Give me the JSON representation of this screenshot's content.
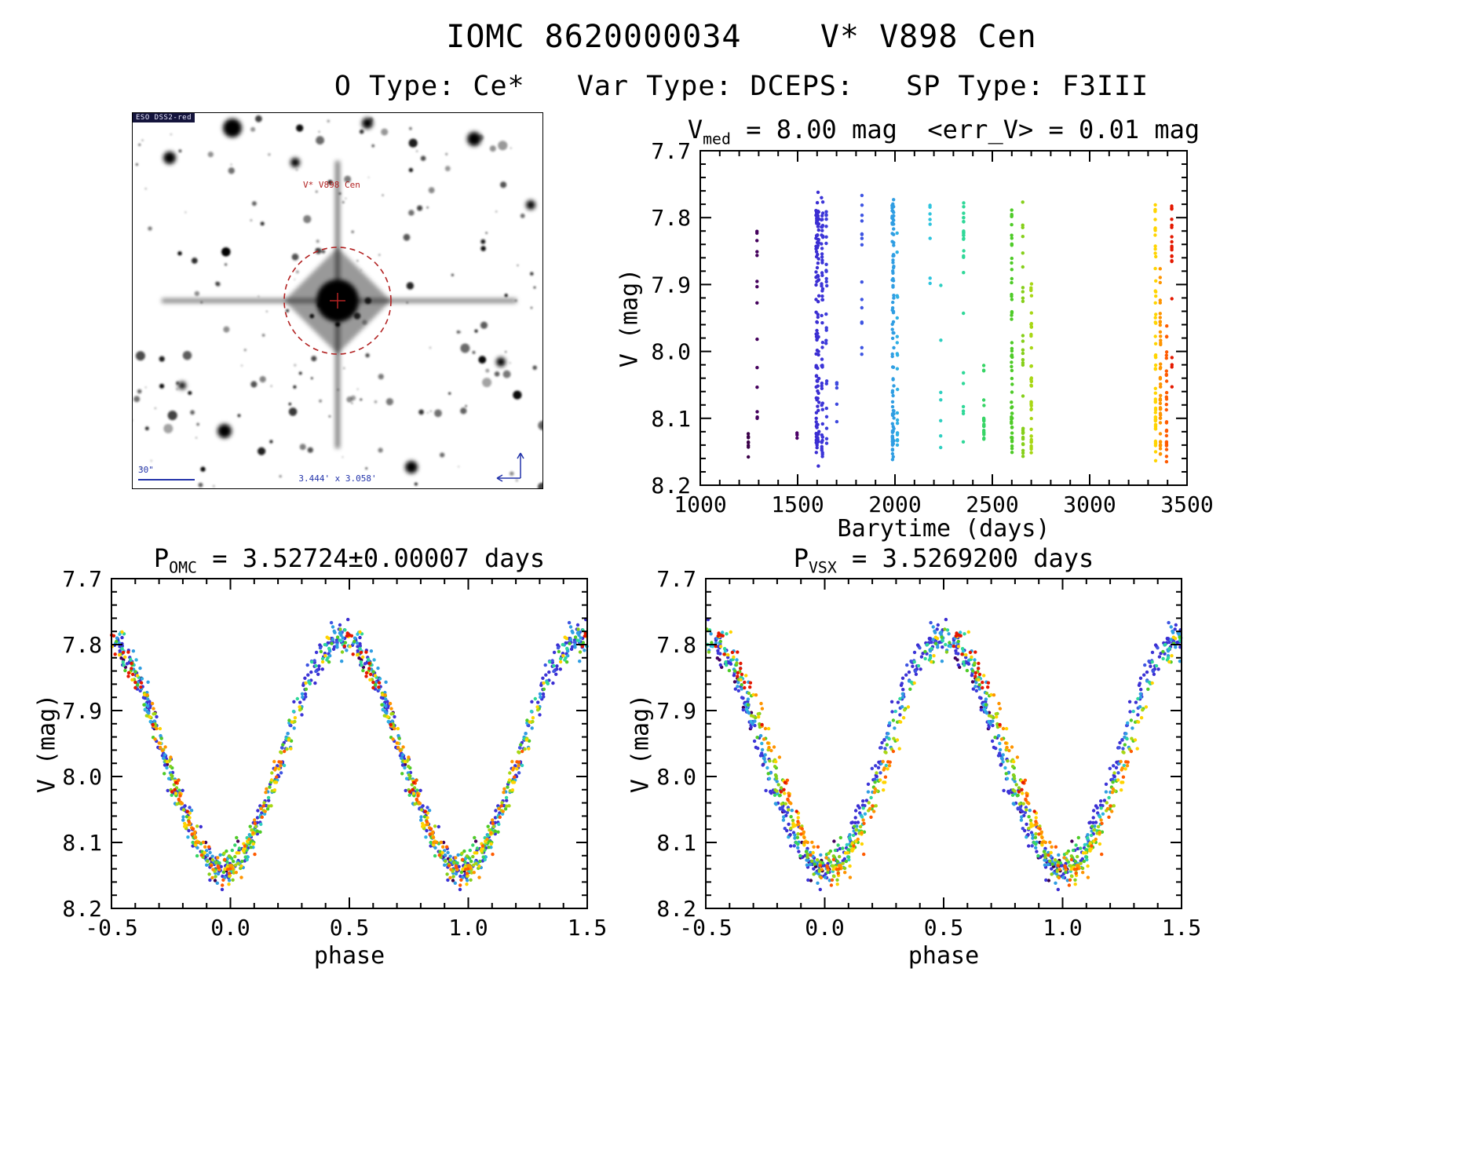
{
  "header": {
    "title": "IOMC 8620000034    V* V898 Cen",
    "subtitle": "O Type: Ce*   Var Type: DCEPS:   SP Type: F3III"
  },
  "finder": {
    "survey_label": "ESO DSS2-red",
    "star_label": "V* V898 Cen",
    "scale_label": "30\"",
    "fov_label": "3.444' x 3.058'"
  },
  "chart_data": [
    {
      "name": "v_mag_vs_barytime",
      "type": "scatter",
      "title_parts": {
        "pre": "V",
        "sub": "med",
        "post": " = 8.00 mag  <err_V> = 0.01 mag"
      },
      "median_v_mag": 8.0,
      "mean_err_v_mag": 0.01,
      "xlabel": "Barytime (days)",
      "ylabel": "V (mag)",
      "xlim": [
        1000,
        3500
      ],
      "ylim": [
        7.7,
        8.2
      ],
      "y_axis_inverted": true,
      "xticks": [
        1000,
        1500,
        2000,
        2500,
        3000,
        3500
      ],
      "yticks": [
        7.7,
        7.8,
        7.9,
        8.0,
        8.1,
        8.2
      ],
      "x_minor_step": 100,
      "y_minor_step": 0.02,
      "xdec": 0,
      "ydec": 1,
      "grid": false,
      "legend": "none",
      "model": {
        "t0_days": 1000.0,
        "mean_mag": 7.965,
        "semi_amplitude_mag": 0.175,
        "phase_of_max_mag": 0.97,
        "scatter_mag": 0.012
      },
      "epochs": [
        {
          "t": 1246.7,
          "span": 0.7,
          "n": 8,
          "color": "#3a0048"
        },
        {
          "t": 1292.0,
          "span": 1.8,
          "n": 14,
          "color": "#44005c"
        },
        {
          "t": 1497.0,
          "span": 0.3,
          "n": 3,
          "color": "#4b0066"
        },
        {
          "t": 1602.0,
          "span": 16.0,
          "n": 120,
          "color": "#3b2ed2"
        },
        {
          "t": 1626.0,
          "span": 8.0,
          "n": 55,
          "color": "#3c35d8"
        },
        {
          "t": 1648.0,
          "span": 4.0,
          "n": 25,
          "color": "#3d3cda"
        },
        {
          "t": 1701.2,
          "span": 0.5,
          "n": 6,
          "color": "#3e49de"
        },
        {
          "t": 1830.0,
          "span": 1.2,
          "n": 15,
          "color": "#3f55e2"
        },
        {
          "t": 1990.0,
          "span": 9.0,
          "n": 95,
          "color": "#2f9de2"
        },
        {
          "t": 2012.0,
          "span": 2.5,
          "n": 20,
          "color": "#2fb0e4"
        },
        {
          "t": 2180.0,
          "span": 0.8,
          "n": 8,
          "color": "#2ec4de"
        },
        {
          "t": 2235.0,
          "span": 1.0,
          "n": 7,
          "color": "#2ecfc0"
        },
        {
          "t": 2352.0,
          "span": 2.2,
          "n": 26,
          "color": "#2fd898"
        },
        {
          "t": 2456.5,
          "span": 1.5,
          "n": 20,
          "color": "#36d465"
        },
        {
          "t": 2600.0,
          "span": 4.0,
          "n": 55,
          "color": "#4ecb28"
        },
        {
          "t": 2657.0,
          "span": 2.2,
          "n": 30,
          "color": "#86cf1a"
        },
        {
          "t": 2700.0,
          "span": 2.5,
          "n": 40,
          "color": "#a8d714"
        },
        {
          "t": 3338.0,
          "span": 3.5,
          "n": 60,
          "color": "#ffd400"
        },
        {
          "t": 3363.0,
          "span": 2.0,
          "n": 45,
          "color": "#ff9400"
        },
        {
          "t": 3395.0,
          "span": 1.6,
          "n": 28,
          "color": "#ff5a00"
        },
        {
          "t": 3422.0,
          "span": 1.4,
          "n": 22,
          "color": "#e41800"
        }
      ]
    },
    {
      "name": "phase_folded_omc",
      "type": "scatter",
      "title_parts": {
        "pre": "P",
        "sub": "OMC",
        "post": " = 3.52724±0.00007 days"
      },
      "period_days": 3.52724,
      "period_err_days": 7e-05,
      "xlabel": "phase",
      "ylabel": "V (mag)",
      "xlim": [
        -0.5,
        1.5
      ],
      "ylim": [
        7.7,
        8.2
      ],
      "y_axis_inverted": true,
      "xticks": [
        -0.5,
        0.0,
        0.5,
        1.0,
        1.5
      ],
      "yticks": [
        7.7,
        7.8,
        7.9,
        8.0,
        8.1,
        8.2
      ],
      "x_minor_step": 0.1,
      "y_minor_step": 0.02,
      "xdec": 1,
      "ydec": 1,
      "grid": false
    },
    {
      "name": "phase_folded_vsx",
      "type": "scatter",
      "title_parts": {
        "pre": "P",
        "sub": "VSX",
        "post": " = 3.5269200 days"
      },
      "period_days": 3.52692,
      "xlabel": "phase",
      "ylabel": "V (mag)",
      "xlim": [
        -0.5,
        1.5
      ],
      "ylim": [
        7.7,
        8.2
      ],
      "y_axis_inverted": true,
      "xticks": [
        -0.5,
        0.0,
        0.5,
        1.0,
        1.5
      ],
      "yticks": [
        7.7,
        7.8,
        7.9,
        8.0,
        8.1,
        8.2
      ],
      "x_minor_step": 0.1,
      "y_minor_step": 0.02,
      "xdec": 1,
      "ydec": 1,
      "grid": false
    }
  ]
}
